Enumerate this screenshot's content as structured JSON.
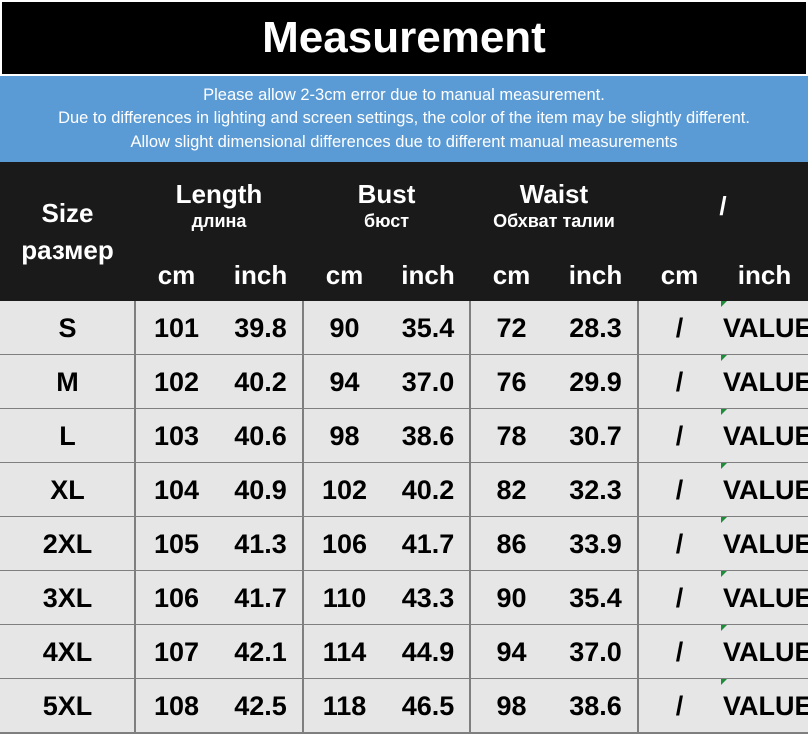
{
  "header": {
    "title": "Measurement"
  },
  "notes": [
    "Please allow 2-3cm error due to manual measurement.",
    "Due to differences in lighting and screen settings, the color of the item may be slightly different.",
    "Allow slight dimensional differences due to different manual measurements"
  ],
  "table": {
    "size_header": [
      "Size",
      "размер"
    ],
    "groups": [
      {
        "name": "Length",
        "sub": "длина",
        "units": [
          "cm",
          "inch"
        ]
      },
      {
        "name": "Bust",
        "sub": "бюст",
        "units": [
          "cm",
          "inch"
        ]
      },
      {
        "name": "Waist",
        "sub": "Обхват талии",
        "units": [
          "cm",
          "inch"
        ]
      },
      {
        "name": "/",
        "units": [
          "cm",
          "inch"
        ]
      }
    ],
    "rows": [
      [
        "S",
        "101",
        "39.8",
        "90",
        "35.4",
        "72",
        "28.3",
        "/",
        "VALUE"
      ],
      [
        "M",
        "102",
        "40.2",
        "94",
        "37.0",
        "76",
        "29.9",
        "/",
        "VALUE"
      ],
      [
        "L",
        "103",
        "40.6",
        "98",
        "38.6",
        "78",
        "30.7",
        "/",
        "VALUE"
      ],
      [
        "XL",
        "104",
        "40.9",
        "102",
        "40.2",
        "82",
        "32.3",
        "/",
        "VALUE"
      ],
      [
        "2XL",
        "105",
        "41.3",
        "106",
        "41.7",
        "86",
        "33.9",
        "/",
        "VALUE"
      ],
      [
        "3XL",
        "106",
        "41.7",
        "110",
        "43.3",
        "90",
        "35.4",
        "/",
        "VALUE"
      ],
      [
        "4XL",
        "107",
        "42.1",
        "114",
        "44.9",
        "94",
        "37.0",
        "/",
        "VALUE"
      ],
      [
        "5XL",
        "108",
        "42.5",
        "118",
        "46.5",
        "98",
        "38.6",
        "/",
        "VALUE"
      ]
    ]
  }
}
